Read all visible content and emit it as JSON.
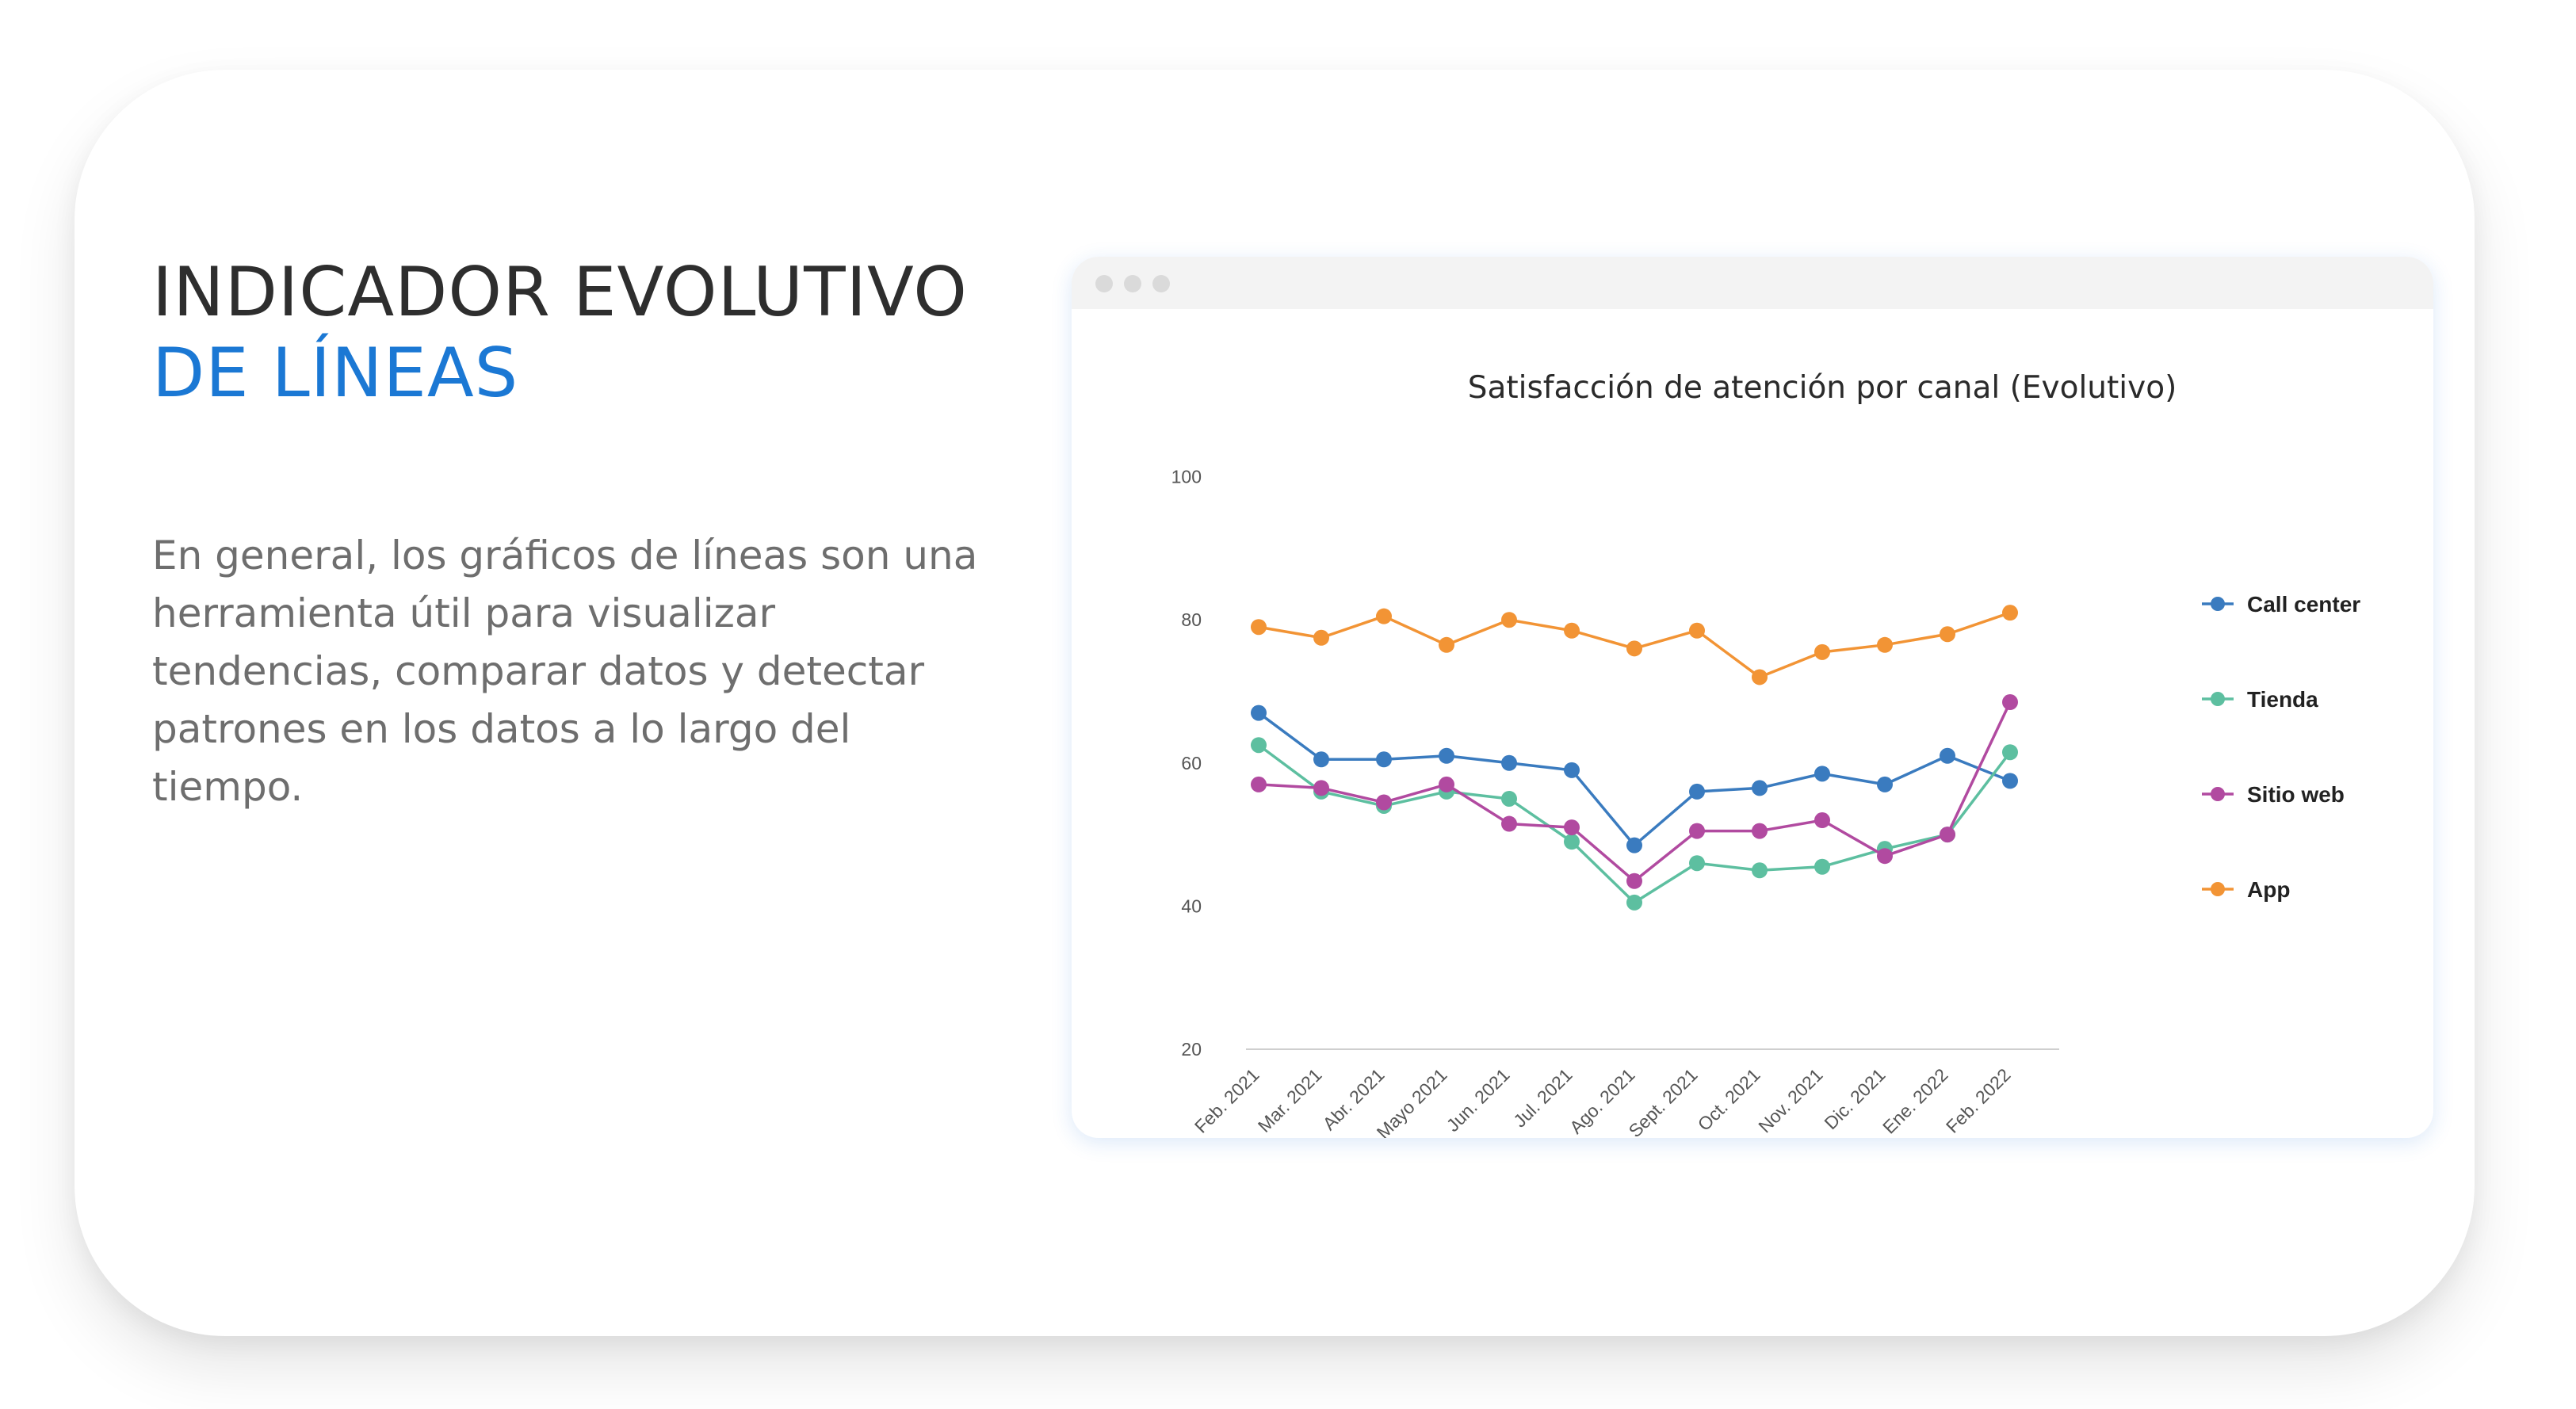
{
  "heading": {
    "line1": "INDICADOR EVOLUTIVO",
    "line2": "DE LÍNEAS"
  },
  "description": "En general, los gráficos de líneas son una herramienta útil para visualizar tendencias, comparar datos y detectar patrones en los datos a lo largo del tiempo.",
  "colors": {
    "heading_dark": "#2e2e2e",
    "heading_accent": "#1b78d4",
    "body_text": "#6e6e6e"
  },
  "chart_data": {
    "type": "line",
    "title": "Satisfacción de atención por canal (Evolutivo)",
    "xlabel": "",
    "ylabel": "",
    "ylim": [
      20,
      100
    ],
    "yticks": [
      20,
      40,
      60,
      80,
      100
    ],
    "grid": false,
    "legend_position": "right",
    "categories": [
      "Feb. 2021",
      "Mar. 2021",
      "Abr. 2021",
      "Mayo 2021",
      "Jun. 2021",
      "Jul. 2021",
      "Ago. 2021",
      "Sept. 2021",
      "Oct. 2021",
      "Nov. 2021",
      "Dic. 2021",
      "Ene. 2022",
      "Feb. 2022"
    ],
    "series": [
      {
        "name": "Call center",
        "color": "#3a7bbf",
        "values": [
          67,
          60.5,
          60.5,
          61,
          60,
          59,
          48.5,
          56,
          56.5,
          58.5,
          57,
          61,
          57.5
        ]
      },
      {
        "name": "Tienda",
        "color": "#5dbfa0",
        "values": [
          62.5,
          56,
          54,
          56,
          55,
          49,
          40.5,
          46,
          45,
          45.5,
          48,
          50,
          61.5
        ]
      },
      {
        "name": "Sitio web",
        "color": "#b14aa0",
        "values": [
          57,
          56.5,
          54.5,
          57,
          51.5,
          51,
          43.5,
          50.5,
          50.5,
          52,
          47,
          50,
          68.5
        ]
      },
      {
        "name": "App",
        "color": "#f29435",
        "values": [
          79,
          77.5,
          80.5,
          76.5,
          80,
          78.5,
          76,
          78.5,
          72,
          75.5,
          76.5,
          78,
          81
        ]
      }
    ]
  }
}
